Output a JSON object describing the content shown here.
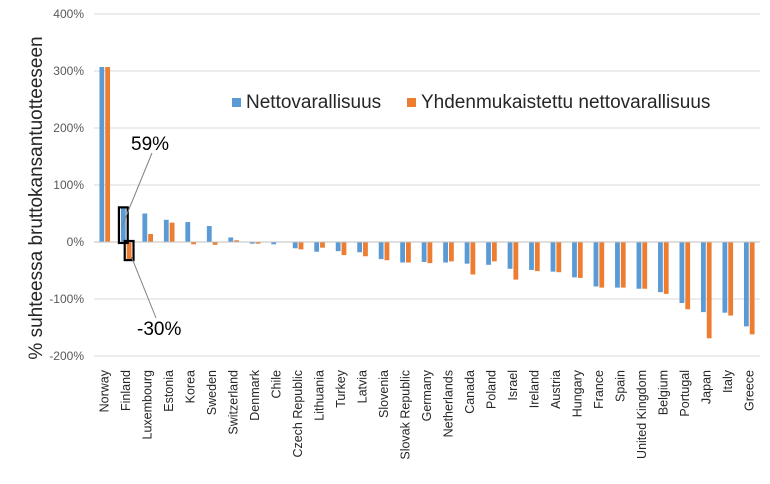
{
  "chart_data": {
    "type": "bar",
    "ylabel": "% suhteessa bruttokansantuotteeseen",
    "ylim": [
      -200,
      400
    ],
    "yticks": [
      -200,
      -100,
      0,
      100,
      200,
      300,
      400
    ],
    "ytick_labels": [
      "-200%",
      "-100%",
      "0%",
      "100%",
      "200%",
      "300%",
      "400%"
    ],
    "grid": true,
    "legend_position": "top-right",
    "categories": [
      "Norway",
      "Finland",
      "Luxembourg",
      "Estonia",
      "Korea",
      "Sweden",
      "Switzerland",
      "Denmark",
      "Chile",
      "Czech Republic",
      "Lithuania",
      "Turkey",
      "Latvia",
      "Slovenia",
      "Slovak Republic",
      "Germany",
      "Netherlands",
      "Canada",
      "Poland",
      "Israel",
      "Ireland",
      "Austria",
      "Hungary",
      "France",
      "Spain",
      "United Kingdom",
      "Belgium",
      "Portugal",
      "Japan",
      "Italy",
      "Greece"
    ],
    "series": [
      {
        "name": "Nettovarallisuus",
        "color": "#5B9BD5",
        "values": [
          307,
          59,
          50,
          39,
          35,
          28,
          8,
          -3,
          -4,
          -11,
          -17,
          -16,
          -18,
          -30,
          -36,
          -35,
          -36,
          -38,
          -40,
          -47,
          -49,
          -52,
          -62,
          -78,
          -80,
          -82,
          -88,
          -107,
          -123,
          -124,
          -148
        ]
      },
      {
        "name": "Yhdenmukaistettu nettovarallisuus",
        "color": "#ED7D31",
        "values": [
          307,
          -30,
          14,
          34,
          -4,
          -5,
          3,
          -3,
          0,
          -13,
          -10,
          -23,
          -25,
          -32,
          -36,
          -37,
          -34,
          -57,
          -34,
          -66,
          -51,
          -53,
          -63,
          -80,
          -80,
          -82,
          -91,
          -118,
          -169,
          -129,
          -162
        ]
      }
    ],
    "annotations": [
      {
        "text": "59%",
        "target_category": "Finland",
        "target_series": "Nettovarallisuus"
      },
      {
        "text": "-30%",
        "target_category": "Finland",
        "target_series": "Yhdenmukaistettu nettovarallisuus"
      }
    ]
  }
}
